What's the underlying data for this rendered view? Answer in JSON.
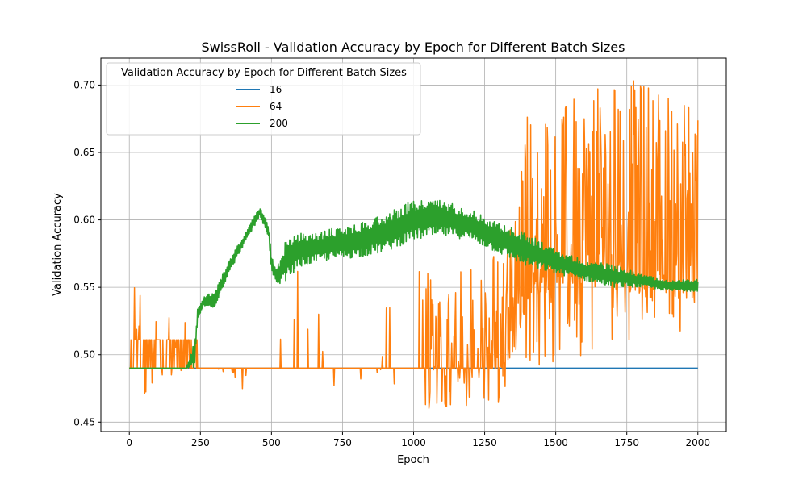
{
  "chart_data": {
    "type": "line",
    "title": "SwissRoll - Validation Accuracy by Epoch for Different Batch Sizes",
    "xlabel": "Epoch",
    "ylabel": "Validation Accuracy",
    "xlim": [
      -100,
      2100
    ],
    "ylim": [
      0.443,
      0.72
    ],
    "x_ticks": [
      0,
      250,
      500,
      750,
      1000,
      1250,
      1500,
      1750,
      2000
    ],
    "x_tick_labels": [
      "0",
      "250",
      "500",
      "750",
      "1000",
      "1250",
      "1500",
      "1750",
      "2000"
    ],
    "y_ticks": [
      0.45,
      0.5,
      0.55,
      0.6,
      0.65,
      0.7
    ],
    "y_tick_labels": [
      "0.45",
      "0.50",
      "0.55",
      "0.60",
      "0.65",
      "0.70"
    ],
    "grid": true,
    "legend": {
      "title": "Validation Accuracy by Epoch for Different Batch Sizes",
      "placement": "top-left"
    },
    "series": [
      {
        "name": "16",
        "color": "#1f77b4",
        "style": "flat",
        "x": [
          0,
          2000
        ],
        "y": [
          0.49,
          0.49
        ]
      },
      {
        "name": "64",
        "color": "#ff7f0e",
        "style": "noisy-spikes",
        "x": [
          0,
          50,
          100,
          150,
          200,
          250,
          300,
          400,
          500,
          600,
          700,
          800,
          900,
          1000,
          1100,
          1200,
          1300,
          1350,
          1400,
          1500,
          1600,
          1700,
          1800,
          1900,
          2000
        ],
        "baseline": [
          0.49,
          0.49,
          0.49,
          0.49,
          0.49,
          0.49,
          0.49,
          0.49,
          0.49,
          0.49,
          0.49,
          0.49,
          0.49,
          0.49,
          0.49,
          0.49,
          0.49,
          0.5,
          0.55,
          0.56,
          0.56,
          0.56,
          0.55,
          0.55,
          0.55
        ],
        "upper": [
          0.565,
          0.553,
          0.55,
          0.542,
          0.525,
          0.52,
          0.52,
          0.56,
          0.56,
          0.565,
          0.57,
          0.565,
          0.56,
          0.57,
          0.575,
          0.575,
          0.58,
          0.6,
          0.685,
          0.685,
          0.695,
          0.705,
          0.705,
          0.7,
          0.69
        ],
        "lower": [
          0.49,
          0.47,
          0.485,
          0.485,
          0.49,
          0.49,
          0.49,
          0.464,
          0.47,
          0.475,
          0.46,
          0.456,
          0.457,
          0.46,
          0.46,
          0.46,
          0.465,
          0.49,
          0.49,
          0.49,
          0.5,
          0.49,
          0.52,
          0.52,
          0.505
        ]
      },
      {
        "name": "200",
        "color": "#2ca02c",
        "style": "noisy-band",
        "x": [
          0,
          100,
          200,
          230,
          240,
          260,
          300,
          350,
          400,
          440,
          460,
          490,
          500,
          520,
          550,
          600,
          650,
          700,
          800,
          900,
          1000,
          1100,
          1200,
          1300,
          1400,
          1500,
          1600,
          1700,
          1800,
          1900,
          2000
        ],
        "y_low": [
          0.49,
          0.49,
          0.49,
          0.49,
          0.525,
          0.535,
          0.535,
          0.56,
          0.58,
          0.595,
          0.603,
          0.585,
          0.56,
          0.55,
          0.555,
          0.565,
          0.568,
          0.57,
          0.572,
          0.576,
          0.585,
          0.588,
          0.585,
          0.575,
          0.565,
          0.56,
          0.555,
          0.55,
          0.55,
          0.547,
          0.547
        ],
        "y_high": [
          0.49,
          0.49,
          0.49,
          0.51,
          0.535,
          0.543,
          0.547,
          0.57,
          0.588,
          0.603,
          0.609,
          0.597,
          0.573,
          0.565,
          0.585,
          0.59,
          0.59,
          0.593,
          0.597,
          0.605,
          0.615,
          0.615,
          0.608,
          0.598,
          0.59,
          0.578,
          0.57,
          0.567,
          0.56,
          0.555,
          0.556
        ]
      }
    ]
  }
}
